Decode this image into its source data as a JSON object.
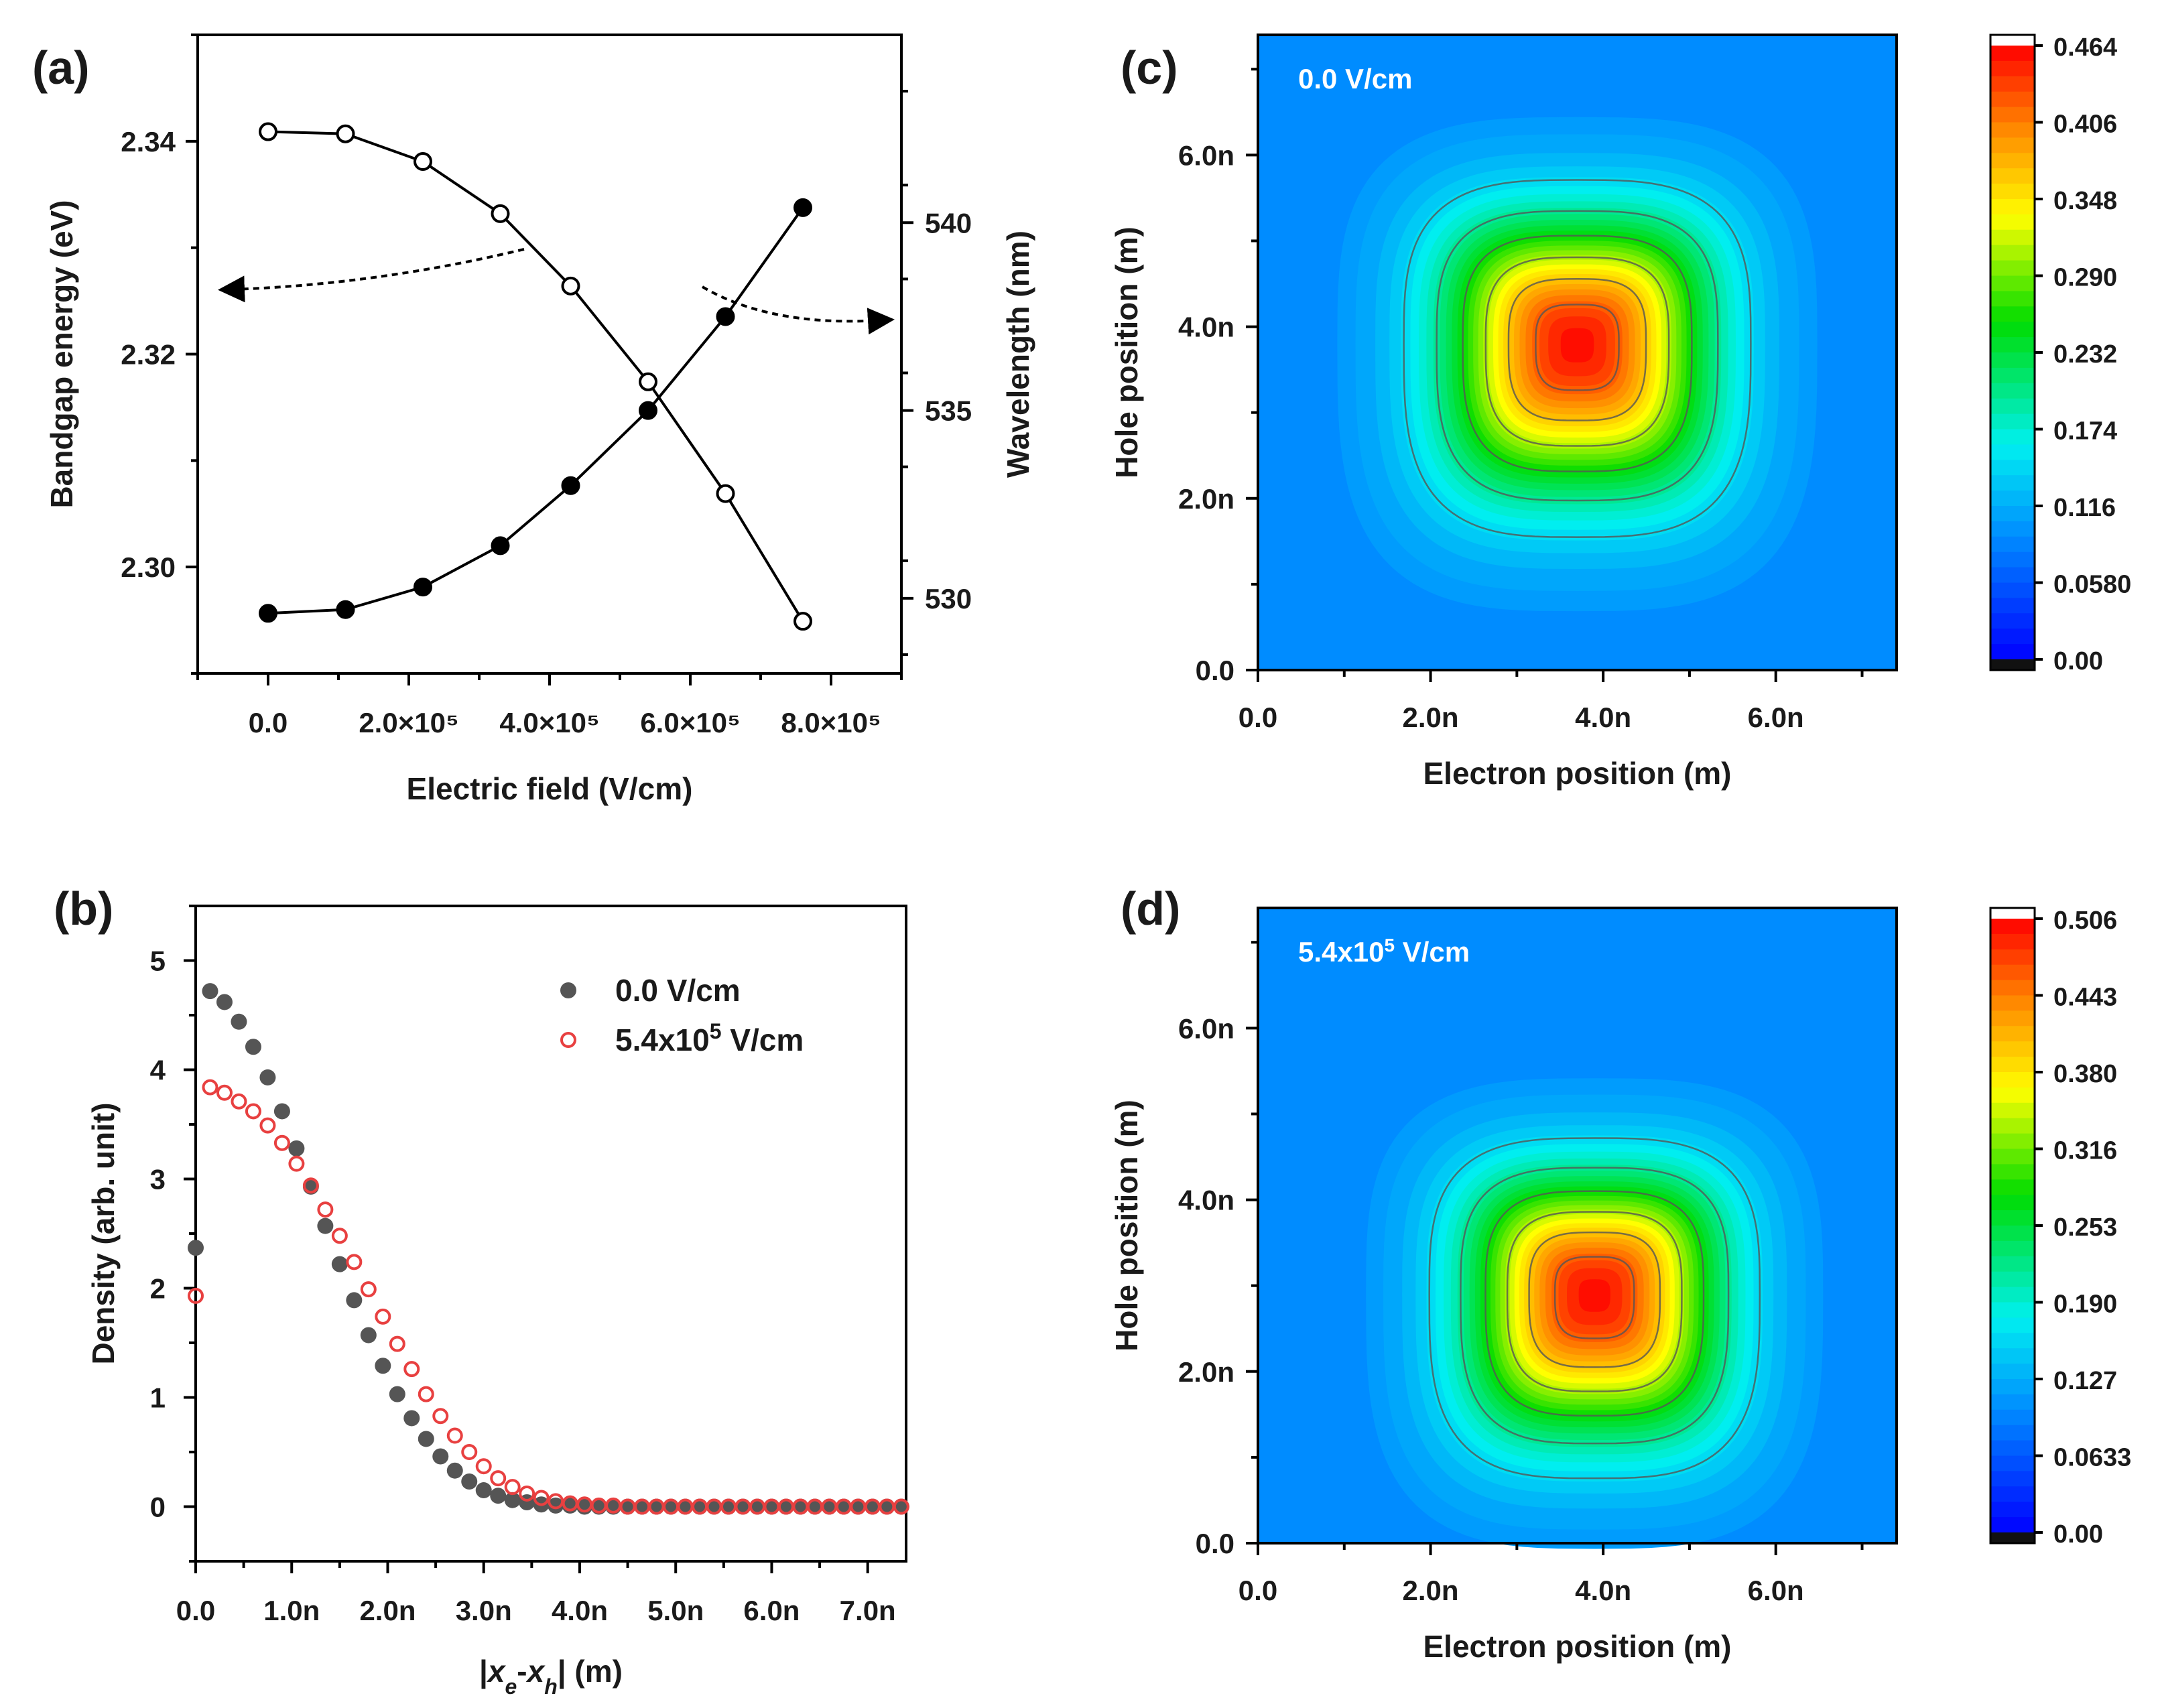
{
  "chart_data": [
    {
      "panel_label": "(a)",
      "type": "line",
      "xlabel": "Electric field (V/cm)",
      "ylabel": "Bandgap energy (eV)",
      "y2label": "Wavelength (nm)",
      "xlim": [
        -100000,
        900000
      ],
      "ylim": [
        2.29,
        2.35
      ],
      "y2lim": [
        528.0,
        545.0
      ],
      "x_tick_values": [
        0,
        200000,
        400000,
        600000,
        800000
      ],
      "x_tick_labels": [
        "0.0",
        "2.0×10⁵",
        "4.0×10⁵",
        "6.0×10⁵",
        "8.0×10⁵"
      ],
      "y_tick_values": [
        2.3,
        2.32,
        2.34
      ],
      "y_tick_labels": [
        "2.30",
        "2.32",
        "2.34"
      ],
      "y2_tick_values": [
        530,
        535,
        540
      ],
      "y2_tick_labels": [
        "530",
        "535",
        "540"
      ],
      "series": [
        {
          "name": "Bandgap energy",
          "axis": "left",
          "marker": "open-circle",
          "x": [
            0,
            110000,
            220000,
            330000,
            430000,
            540000,
            650000,
            760000
          ],
          "values": [
            2.3409,
            2.3407,
            2.3381,
            2.3332,
            2.3264,
            2.3174,
            2.3069,
            2.2949
          ]
        },
        {
          "name": "Wavelength",
          "axis": "right",
          "marker": "filled-circle",
          "x": [
            0,
            110000,
            220000,
            330000,
            430000,
            540000,
            650000,
            760000
          ],
          "values": [
            529.6,
            529.7,
            530.3,
            531.4,
            533.0,
            535.0,
            537.5,
            540.4
          ]
        }
      ],
      "annotations": [
        "dashed arrow pointing to left axis",
        "dashed arrow pointing to right axis"
      ]
    },
    {
      "panel_label": "(b)",
      "type": "scatter",
      "xlabel_parts": [
        "|",
        "x",
        "e",
        "-",
        "x",
        "h",
        "|  (m)"
      ],
      "ylabel": "Density (arb. unit)",
      "xlim": [
        0,
        7.4
      ],
      "ylim": [
        -0.5,
        5.5
      ],
      "x_tick_values": [
        0,
        1,
        2,
        3,
        4,
        5,
        6,
        7
      ],
      "x_tick_labels": [
        "0.0",
        "1.0n",
        "2.0n",
        "3.0n",
        "4.0n",
        "5.0n",
        "6.0n",
        "7.0n"
      ],
      "y_tick_values": [
        0,
        1,
        2,
        3,
        4,
        5
      ],
      "y_tick_labels": [
        "0",
        "1",
        "2",
        "3",
        "4",
        "5"
      ],
      "legend_position": "top-right",
      "series": [
        {
          "name": "0.0 V/cm",
          "marker": "filled-circle",
          "color": "#555555",
          "x": [
            0,
            0.15,
            0.3,
            0.45,
            0.6,
            0.75,
            0.9,
            1.05,
            1.2,
            1.35,
            1.5,
            1.65,
            1.8,
            1.95,
            2.1,
            2.25,
            2.4,
            2.55,
            2.7,
            2.85,
            3.0,
            3.15,
            3.3,
            3.45,
            3.6,
            3.75,
            3.9,
            4.05,
            4.2,
            4.35,
            4.5,
            4.65,
            4.8,
            4.95,
            5.1,
            5.25,
            5.4,
            5.55,
            5.7,
            5.85,
            6.0,
            6.15,
            6.3,
            6.45,
            6.6,
            6.75,
            6.9,
            7.05,
            7.2,
            7.35
          ],
          "values": [
            2.37,
            4.72,
            4.62,
            4.44,
            4.21,
            3.93,
            3.62,
            3.28,
            2.93,
            2.57,
            2.22,
            1.89,
            1.57,
            1.29,
            1.03,
            0.81,
            0.62,
            0.46,
            0.33,
            0.23,
            0.15,
            0.1,
            0.06,
            0.04,
            0.02,
            0.01,
            0.01,
            0,
            0,
            0,
            0,
            0,
            0,
            0,
            0,
            0,
            0,
            0,
            0,
            0,
            0,
            0,
            0,
            0,
            0,
            0,
            0,
            0,
            0,
            0
          ]
        },
        {
          "name_main": "5.4x10",
          "name_sup": "5",
          "name_rest": " V/cm",
          "marker": "open-circle",
          "color": "#e84040",
          "x": [
            0,
            0.15,
            0.3,
            0.45,
            0.6,
            0.75,
            0.9,
            1.05,
            1.2,
            1.35,
            1.5,
            1.65,
            1.8,
            1.95,
            2.1,
            2.25,
            2.4,
            2.55,
            2.7,
            2.85,
            3.0,
            3.15,
            3.3,
            3.45,
            3.6,
            3.75,
            3.9,
            4.05,
            4.2,
            4.35,
            4.5,
            4.65,
            4.8,
            4.95,
            5.1,
            5.25,
            5.4,
            5.55,
            5.7,
            5.85,
            6.0,
            6.15,
            6.3,
            6.45,
            6.6,
            6.75,
            6.9,
            7.05,
            7.2,
            7.35
          ],
          "values": [
            1.93,
            3.84,
            3.79,
            3.71,
            3.62,
            3.49,
            3.33,
            3.14,
            2.94,
            2.72,
            2.48,
            2.24,
            1.99,
            1.74,
            1.49,
            1.26,
            1.03,
            0.83,
            0.65,
            0.5,
            0.37,
            0.26,
            0.18,
            0.12,
            0.08,
            0.05,
            0.03,
            0.02,
            0.01,
            0.01,
            0,
            0,
            0,
            0,
            0,
            0,
            0,
            0,
            0,
            0,
            0,
            0,
            0,
            0,
            0,
            0,
            0,
            0,
            0,
            0
          ]
        }
      ]
    },
    {
      "panel_label": "(c)",
      "type": "heatmap",
      "inset_main": "0.0 V/cm",
      "inset_sup": "",
      "inset_rest": "",
      "xlabel": "Electron position (m)",
      "ylabel": "Hole position (m)",
      "xlim": [
        0,
        7.4
      ],
      "ylim": [
        0,
        7.4
      ],
      "x_tick_values": [
        0,
        2,
        4,
        6
      ],
      "x_tick_labels": [
        "0.0",
        "2.0n",
        "4.0n",
        "6.0n"
      ],
      "y_tick_values": [
        0,
        2,
        4,
        6
      ],
      "y_tick_labels": [
        "0.0",
        "2.0n",
        "4.0n",
        "6.0n"
      ],
      "peak_center": [
        3.7,
        3.8
      ],
      "peak_value": 0.464,
      "width_x": 1.05,
      "width_y": 1.05,
      "colorbar_ticks": [
        "0.464",
        "0.406",
        "0.348",
        "0.290",
        "0.232",
        "0.174",
        "0.116",
        "0.0580",
        "0.00"
      ],
      "colorbar_range": [
        0,
        0.464
      ]
    },
    {
      "panel_label": "(d)",
      "type": "heatmap",
      "inset_main": "5.4x10",
      "inset_sup": "5",
      "inset_rest": " V/cm",
      "xlabel": "Electron position (m)",
      "ylabel": "Hole position (m)",
      "xlim": [
        0,
        7.4
      ],
      "ylim": [
        0,
        7.4
      ],
      "x_tick_values": [
        0,
        2,
        4,
        6
      ],
      "x_tick_labels": [
        "0.0",
        "2.0n",
        "4.0n",
        "6.0n"
      ],
      "y_tick_values": [
        0,
        2,
        4,
        6
      ],
      "y_tick_labels": [
        "0.0",
        "2.0n",
        "4.0n",
        "6.0n"
      ],
      "peak_center": [
        3.9,
        2.9
      ],
      "peak_value": 0.506,
      "width_x": 1.0,
      "width_y": 1.0,
      "colorbar_ticks": [
        "0.506",
        "0.443",
        "0.380",
        "0.316",
        "0.253",
        "0.190",
        "0.127",
        "0.0633",
        "0.00"
      ],
      "colorbar_range": [
        0,
        0.506
      ]
    }
  ]
}
